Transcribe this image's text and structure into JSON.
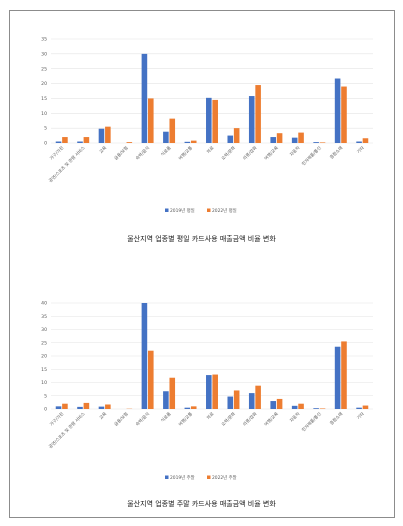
{
  "colors": {
    "series_2019": "#4472c4",
    "series_2022": "#ed7d31",
    "grid": "#e3e3e3",
    "axis_text": "#595959"
  },
  "chart_data": [
    {
      "type": "bar",
      "title": "울산지역 업종별 평일 카드사용 매출금액 비율 변화",
      "xlabel": "",
      "ylabel": "",
      "ylim": [
        0,
        35
      ],
      "yticks": [
        0,
        5,
        10,
        15,
        20,
        25,
        30,
        35
      ],
      "grid": true,
      "legend_position": "bottom",
      "categories": [
        "가구/가전",
        "공연/스포츠 및 관람 서비스",
        "교육",
        "금융/보험",
        "숙박/음식",
        "식료품",
        "여행/교통",
        "의료",
        "오락/문화",
        "의류/잡화",
        "여행/교육",
        "자동차",
        "전자제품/통신",
        "종합소매",
        "기타"
      ],
      "series": [
        {
          "name": "2019년 평일",
          "values": [
            0.5,
            0.5,
            4.8,
            0.0,
            30.0,
            3.8,
            0.4,
            15.2,
            2.5,
            15.8,
            2.0,
            1.8,
            0.3,
            21.7,
            0.5
          ]
        },
        {
          "name": "2022년 평일",
          "values": [
            2.0,
            2.0,
            5.5,
            0.3,
            15.0,
            8.2,
            0.8,
            14.5,
            5.0,
            19.5,
            3.3,
            3.5,
            0.2,
            19.0,
            1.6
          ]
        }
      ]
    },
    {
      "type": "bar",
      "title": "울산지역 업종별 주말 카드사용 매출금액 비율 변화",
      "xlabel": "",
      "ylabel": "",
      "ylim": [
        0,
        40
      ],
      "yticks": [
        0,
        5,
        10,
        15,
        20,
        25,
        30,
        35,
        40
      ],
      "grid": true,
      "legend_position": "bottom",
      "categories": [
        "가구/가전",
        "공연/스포츠 및 관람 서비스",
        "교육",
        "금융/보험",
        "숙박/음식",
        "식료품",
        "여행/교통",
        "의료",
        "오락/문화",
        "의류/잡화",
        "여행/교육",
        "자동차",
        "전자제품/통신",
        "종합소매",
        "기타"
      ],
      "series": [
        {
          "name": "2019년 주말",
          "values": [
            1.0,
            0.8,
            0.9,
            0.0,
            40.0,
            6.7,
            0.5,
            12.8,
            4.7,
            6.0,
            3.0,
            1.2,
            0.3,
            23.5,
            0.5
          ]
        },
        {
          "name": "2022년 주말",
          "values": [
            2.0,
            2.3,
            1.7,
            0.1,
            22.0,
            11.8,
            1.0,
            13.0,
            7.0,
            8.8,
            3.8,
            2.0,
            0.2,
            25.5,
            1.3
          ]
        }
      ]
    }
  ]
}
